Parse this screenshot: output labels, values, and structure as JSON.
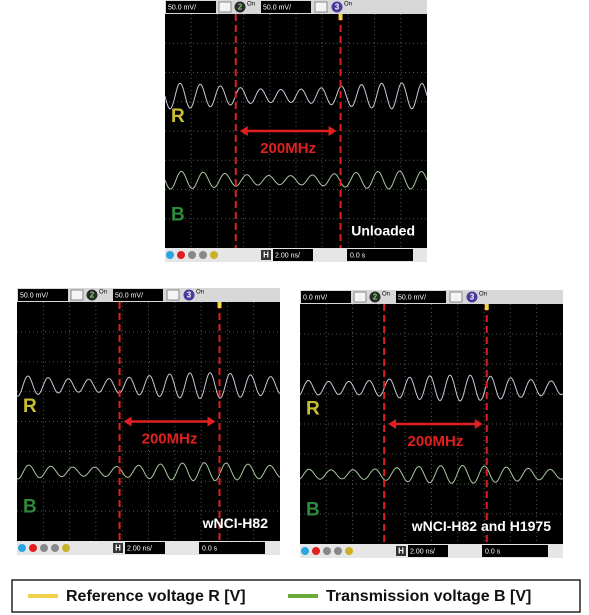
{
  "panels": [
    {
      "toolbar": {
        "ch1_scale": "50.0 mV/",
        "ch2": "2",
        "ch2_state": "On",
        "ch2_scale": "50.0 mV/",
        "ch3": "3",
        "ch3_state": "On"
      },
      "labels": {
        "r": "R",
        "b": "B"
      },
      "marker": "200MHz",
      "note": "Unloaded",
      "bottom": {
        "h": "H",
        "timebase": "2.00 ns/",
        "delay": "0.0 s"
      }
    },
    {
      "toolbar": {
        "ch1_scale": "50.0 mV/",
        "ch2": "2",
        "ch2_state": "On",
        "ch2_scale": "50.0 mV/",
        "ch3": "3",
        "ch3_state": "On"
      },
      "labels": {
        "r": "R",
        "b": "B"
      },
      "marker": "200MHz",
      "note": "wNCI-H82",
      "bottom": {
        "h": "H",
        "timebase": "2.00 ns/",
        "delay": "0.0 s"
      }
    },
    {
      "toolbar": {
        "ch1_scale": "0.0 mV/",
        "ch2": "2",
        "ch2_state": "On",
        "ch2_scale": "50.0 mV/",
        "ch3": "3",
        "ch3_state": "On"
      },
      "labels": {
        "r": "R",
        "b": "B"
      },
      "marker": "200MHz",
      "note": "wNCI-H82 and H1975",
      "bottom": {
        "h": "H",
        "timebase": "2.00 ns/",
        "delay": "0.0 s"
      }
    }
  ],
  "legend": [
    {
      "name": "Reference voltage R [V]",
      "color": "#f2d24b"
    },
    {
      "name": "Transmission voltage B [V]",
      "color": "#6aab3c"
    }
  ]
}
